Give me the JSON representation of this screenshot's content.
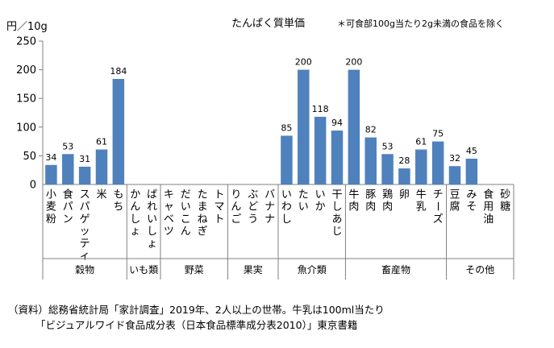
{
  "chart_data": {
    "type": "bar",
    "title": "たんぱく質単価",
    "note": "＊可食部100g当たり2g未満の食品を除く",
    "ylabel": "円／10g",
    "ylim": [
      0,
      250
    ],
    "yticks": [
      0,
      50,
      100,
      150,
      200,
      250
    ],
    "bar_color": "#4f81bd",
    "categories": [
      "小麦粉",
      "食パン",
      "スパゲッティ",
      "米",
      "もち",
      "かんしょ",
      "ばれいしょ",
      "キャベツ",
      "だいこん",
      "たまねぎ",
      "トマト",
      "りんご",
      "ぶどう",
      "バナナ",
      "いわし",
      "たい",
      "いか",
      "干しあじ",
      "牛肉",
      "豚肉",
      "鶏肉",
      "卵",
      "牛乳",
      "チーズ",
      "豆腐",
      "みそ",
      "食用油",
      "砂糖"
    ],
    "values": [
      34,
      53,
      31,
      61,
      184,
      null,
      null,
      null,
      null,
      null,
      null,
      null,
      null,
      null,
      85,
      200,
      118,
      94,
      200,
      82,
      53,
      28,
      61,
      75,
      32,
      45,
      null,
      null
    ],
    "data_labels": [
      "34",
      "53",
      "31",
      "61",
      "184",
      "",
      "",
      "",
      "",
      "",
      "",
      "",
      "",
      "",
      "85",
      "200",
      "118",
      "94",
      "200",
      "82",
      "53",
      "28",
      "61",
      "75",
      "32",
      "45",
      "",
      ""
    ],
    "groups": [
      {
        "name": "穀物",
        "start": 0,
        "end": 4
      },
      {
        "name": "いも類",
        "start": 5,
        "end": 6
      },
      {
        "name": "野菜",
        "start": 7,
        "end": 10
      },
      {
        "name": "果実",
        "start": 11,
        "end": 13
      },
      {
        "name": "魚介類",
        "start": 14,
        "end": 17
      },
      {
        "name": "畜産物",
        "start": 18,
        "end": 23
      },
      {
        "name": "その他",
        "start": 24,
        "end": 27
      }
    ]
  },
  "source": {
    "line1": "（資料）総務省統計局「家計調査」2019年、2人以上の世帯。牛乳は100ml当たり",
    "line2": "「ビジュアルワイド食品成分表（日本食品標準成分表2010）」東京書籍"
  }
}
